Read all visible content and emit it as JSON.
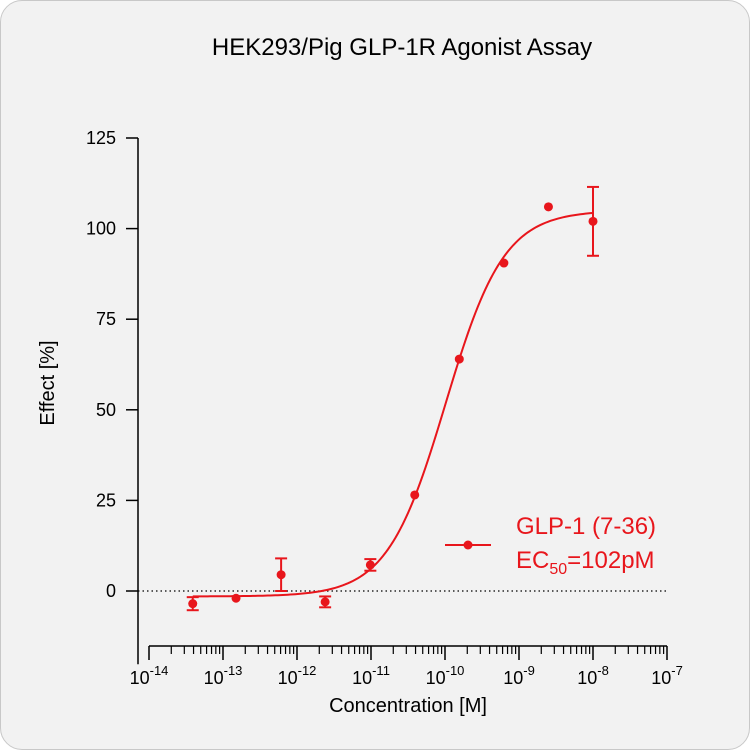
{
  "chart_data": {
    "type": "scatter",
    "title": "HEK293/Pig GLP-1R Agonist Assay",
    "xlabel": "Concentration [M]",
    "ylabel": "Effect  [%]",
    "x_scale": "log",
    "xlim": [
      1e-14,
      1e-07
    ],
    "ylim": [
      -10,
      125
    ],
    "x_ticks": [
      {
        "value": 1e-14,
        "base": "10",
        "exp": "-14"
      },
      {
        "value": 1e-13,
        "base": "10",
        "exp": "-13"
      },
      {
        "value": 1e-12,
        "base": "10",
        "exp": "-12"
      },
      {
        "value": 1e-11,
        "base": "10",
        "exp": "-11"
      },
      {
        "value": 1e-10,
        "base": "10",
        "exp": "-10"
      },
      {
        "value": 1e-09,
        "base": "10",
        "exp": "-9"
      },
      {
        "value": 1e-08,
        "base": "10",
        "exp": "-8"
      },
      {
        "value": 1e-07,
        "base": "10",
        "exp": "-7"
      }
    ],
    "y_ticks": [
      0,
      25,
      50,
      75,
      100,
      125
    ],
    "reference_line": {
      "y": 0,
      "style": "dotted"
    },
    "series": [
      {
        "name": "GLP-1 (7-36)",
        "color": "#e8161c",
        "points": [
          {
            "x": 3.9e-14,
            "y": -3.5,
            "err": 1.8
          },
          {
            "x": 1.5e-13,
            "y": -2.0,
            "err": 0
          },
          {
            "x": 6.1e-13,
            "y": 4.5,
            "err": 4.5
          },
          {
            "x": 2.4e-12,
            "y": -3.0,
            "err": 1.5
          },
          {
            "x": 9.8e-12,
            "y": 7.2,
            "err": 1.6
          },
          {
            "x": 3.9e-11,
            "y": 26.5,
            "err": 0
          },
          {
            "x": 1.56e-10,
            "y": 64.0,
            "err": 0
          },
          {
            "x": 6.25e-10,
            "y": 90.5,
            "err": 0
          },
          {
            "x": 2.5e-09,
            "y": 106.0,
            "err": 0
          },
          {
            "x": 1e-08,
            "y": 102.0,
            "err": 9.5
          }
        ],
        "fit": {
          "bottom": -1.5,
          "top": 105,
          "ec50": 1.02e-10,
          "hill": 1.1
        }
      }
    ],
    "legend": {
      "position": "right",
      "label": "GLP-1 (7-36)",
      "ec50_prefix": "EC",
      "ec50_sub": "50",
      "ec50_value": "=102pM"
    }
  }
}
